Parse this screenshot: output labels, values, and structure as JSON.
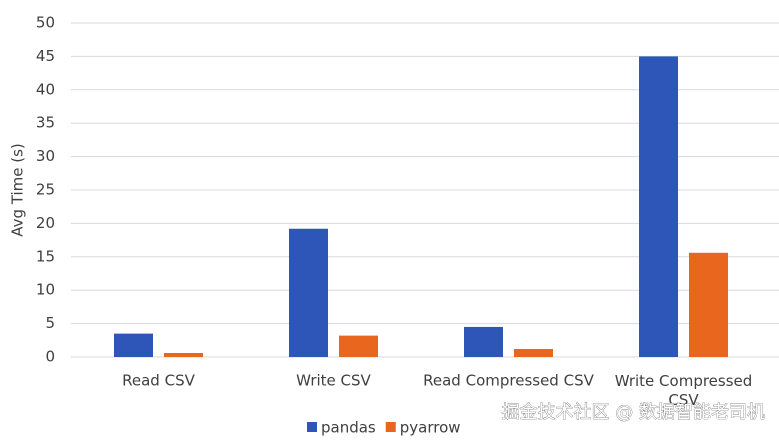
{
  "chart_data": {
    "type": "bar",
    "y_label": "Avg Time (s)",
    "categories": [
      "Read CSV",
      "Write CSV",
      "Read Compressed CSV",
      "Write Compressed CSV"
    ],
    "series": [
      {
        "name": "pandas",
        "color": "#2e56b8",
        "values": [
          3.5,
          19.2,
          4.5,
          45
        ]
      },
      {
        "name": "pyarrow",
        "color": "#e8661d",
        "values": [
          0.6,
          3.2,
          1.2,
          15.6
        ]
      }
    ],
    "ylim": [
      0,
      50
    ],
    "yticks": [
      0,
      5,
      10,
      15,
      20,
      25,
      30,
      35,
      40,
      45,
      50
    ],
    "grid": true,
    "legend": "bottom",
    "watermark": "掘金技术社区 @ 数据智能老司机"
  }
}
